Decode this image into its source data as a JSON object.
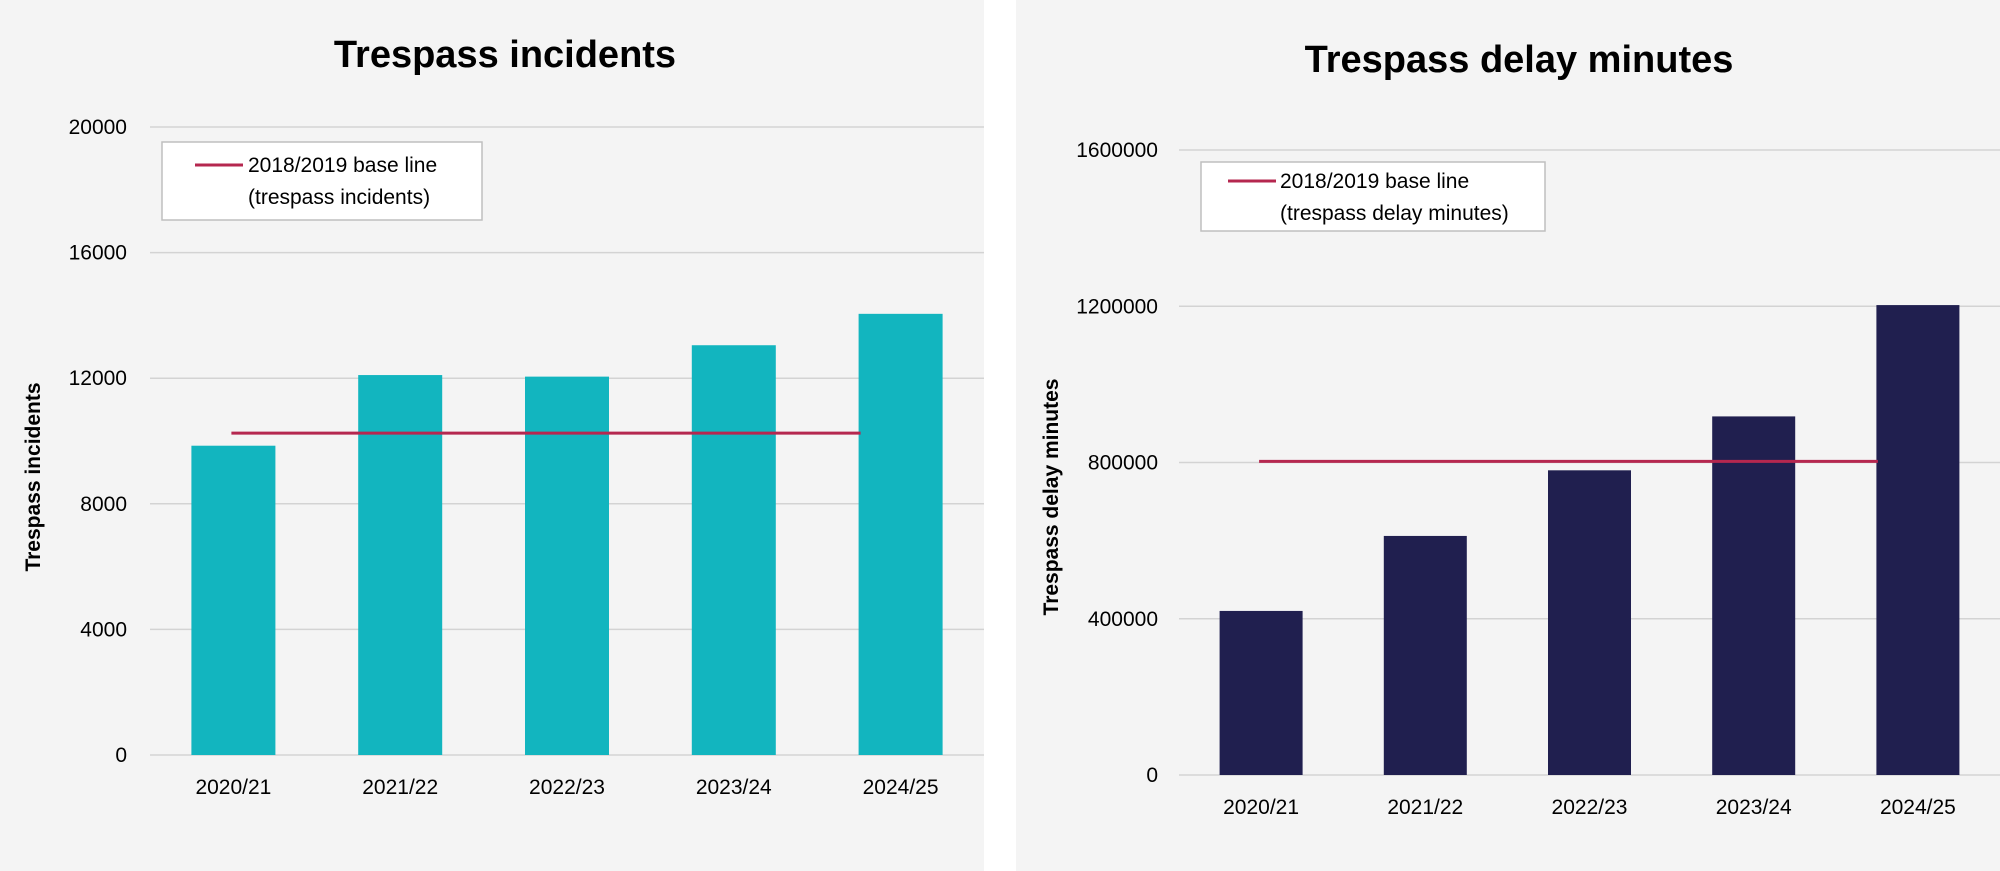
{
  "chart_data": [
    {
      "type": "bar",
      "title": "Trespass incidents",
      "xlabel": "",
      "ylabel": "Trespass incidents",
      "categories": [
        "2020/21",
        "2021/22",
        "2022/23",
        "2023/24",
        "2024/25"
      ],
      "values": [
        9850,
        12100,
        12050,
        13050,
        14050
      ],
      "ylim": [
        0,
        20000
      ],
      "yticks": [
        "0",
        "4000",
        "8000",
        "12000",
        "16000",
        "20000"
      ],
      "baseline": {
        "name": "2018/2019 base line",
        "name_line2": "(trespass incidents)",
        "value": 10250
      },
      "legend_position": "top-left",
      "grid": true,
      "colors": {
        "bar": "#12b5bf",
        "baseline": "#b5274f",
        "grid": "#d3d3d3"
      }
    },
    {
      "type": "bar",
      "title": "Trespass delay minutes",
      "xlabel": "",
      "ylabel": "Trespass delay minutes",
      "categories": [
        "2020/21",
        "2021/22",
        "2022/23",
        "2023/24",
        "2024/25"
      ],
      "values": [
        420000,
        612000,
        780000,
        918000,
        1203000
      ],
      "ylim": [
        0,
        1600000
      ],
      "yticks": [
        "0",
        "400000",
        "800000",
        "1200000",
        "1600000"
      ],
      "baseline": {
        "name": "2018/2019 base line",
        "name_line2": "(trespass delay minutes)",
        "value": 803000
      },
      "legend_position": "top-left",
      "grid": true,
      "colors": {
        "bar": "#201f4f",
        "baseline": "#b5274f",
        "grid": "#d3d3d3"
      }
    }
  ]
}
